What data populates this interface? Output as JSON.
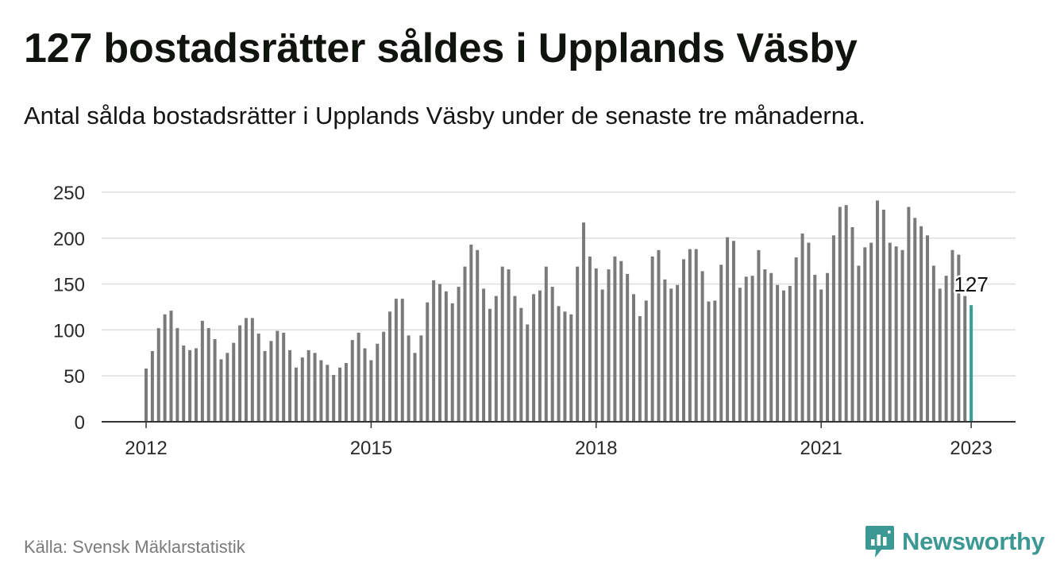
{
  "header": {
    "title": "127 bostadsrätter såldes i Upplands Väsby",
    "subtitle": "Antal sålda bostadsrätter i Upplands Väsby under de senaste tre månaderna."
  },
  "footer": {
    "source": "Källa: Svensk Mäklarstatistik",
    "brand": "Newsworthy",
    "brand_icon": "bar-chart-logo-icon"
  },
  "colors": {
    "bar": "#7a7a7a",
    "highlight": "#3a9e94",
    "grid": "#dedede",
    "axis": "#333333",
    "brand": "#3b9893"
  },
  "chart_data": {
    "type": "bar",
    "title": "127 bostadsrätter såldes i Upplands Väsby",
    "subtitle": "Antal sålda bostadsrätter i Upplands Väsby under de senaste tre månaderna.",
    "xlabel": "",
    "ylabel": "",
    "ylim": [
      0,
      250
    ],
    "y_ticks": [
      0,
      50,
      100,
      150,
      200,
      250
    ],
    "x_ticks": [
      "2012",
      "2015",
      "2018",
      "2021",
      "2023"
    ],
    "x_range": [
      "2012-01",
      "2023-01"
    ],
    "grid": true,
    "legend": "none",
    "highlight_label": "127",
    "series": [
      {
        "x": [
          "2012-01",
          "2012-02",
          "2012-03",
          "2012-04",
          "2012-05",
          "2012-06",
          "2012-07",
          "2012-08",
          "2012-09",
          "2012-10",
          "2012-11",
          "2012-12",
          "2013-01",
          "2013-02",
          "2013-03",
          "2013-04",
          "2013-05",
          "2013-06",
          "2013-07",
          "2013-08",
          "2013-09",
          "2013-10",
          "2013-11",
          "2013-12",
          "2014-01",
          "2014-02",
          "2014-03",
          "2014-04",
          "2014-05",
          "2014-06",
          "2014-07",
          "2014-08",
          "2014-09",
          "2014-10",
          "2014-11",
          "2014-12",
          "2015-01",
          "2015-02",
          "2015-03",
          "2015-04",
          "2015-05",
          "2015-06",
          "2015-07",
          "2015-08",
          "2015-09",
          "2015-10",
          "2015-11",
          "2015-12",
          "2016-01",
          "2016-02",
          "2016-03",
          "2016-04",
          "2016-05",
          "2016-06",
          "2016-07",
          "2016-08",
          "2016-09",
          "2016-10",
          "2016-11",
          "2016-12",
          "2017-01",
          "2017-02",
          "2017-03",
          "2017-04",
          "2017-05",
          "2017-06",
          "2017-07",
          "2017-08",
          "2017-09",
          "2017-10",
          "2017-11",
          "2017-12",
          "2018-01",
          "2018-02",
          "2018-03",
          "2018-04",
          "2018-05",
          "2018-06",
          "2018-07",
          "2018-08",
          "2018-09",
          "2018-10",
          "2018-11",
          "2018-12",
          "2019-01",
          "2019-02",
          "2019-03",
          "2019-04",
          "2019-05",
          "2019-06",
          "2019-07",
          "2019-08",
          "2019-09",
          "2019-10",
          "2019-11",
          "2019-12",
          "2020-01",
          "2020-02",
          "2020-03",
          "2020-04",
          "2020-05",
          "2020-06",
          "2020-07",
          "2020-08",
          "2020-09",
          "2020-10",
          "2020-11",
          "2020-12",
          "2021-01",
          "2021-02",
          "2021-03",
          "2021-04",
          "2021-05",
          "2021-06",
          "2021-07",
          "2021-08",
          "2021-09",
          "2021-10",
          "2021-11",
          "2021-12",
          "2022-01",
          "2022-02",
          "2022-03",
          "2022-04",
          "2022-05",
          "2022-06",
          "2022-07",
          "2022-08",
          "2022-09",
          "2022-10",
          "2022-11",
          "2022-12",
          "2023-01"
        ],
        "values": [
          58,
          77,
          102,
          117,
          121,
          102,
          83,
          78,
          80,
          110,
          102,
          90,
          68,
          75,
          86,
          105,
          113,
          113,
          96,
          77,
          88,
          99,
          97,
          78,
          59,
          70,
          78,
          75,
          67,
          62,
          51,
          59,
          64,
          89,
          97,
          80,
          67,
          85,
          98,
          120,
          134,
          134,
          94,
          75,
          94,
          130,
          154,
          150,
          142,
          129,
          147,
          169,
          193,
          187,
          145,
          123,
          137,
          169,
          166,
          137,
          124,
          106,
          139,
          143,
          169,
          147,
          126,
          120,
          117,
          169,
          217,
          180,
          167,
          144,
          166,
          180,
          175,
          161,
          139,
          115,
          132,
          180,
          187,
          155,
          145,
          149,
          177,
          188,
          188,
          164,
          131,
          132,
          171,
          201,
          197,
          146,
          158,
          159,
          187,
          166,
          162,
          149,
          143,
          148,
          179,
          205,
          195,
          160,
          144,
          162,
          203,
          234,
          236,
          212,
          170,
          190,
          195,
          241,
          231,
          195,
          191,
          187,
          234,
          222,
          213,
          203,
          170,
          145,
          159,
          187,
          182,
          137,
          127
        ]
      }
    ]
  }
}
